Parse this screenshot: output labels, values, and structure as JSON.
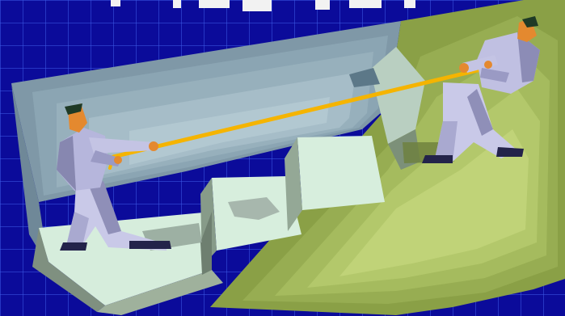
{
  "slide": {
    "background_color": "#0b0b9a",
    "grid_color": "#3c5ae6"
  },
  "clipart": {
    "subject": "tug-of-war",
    "figure_count": 2,
    "rope_color": "#f5b400",
    "terrain_colors": [
      "#a7c45c",
      "#8ea24c",
      "#d7eedd",
      "#8aa6b2"
    ]
  }
}
